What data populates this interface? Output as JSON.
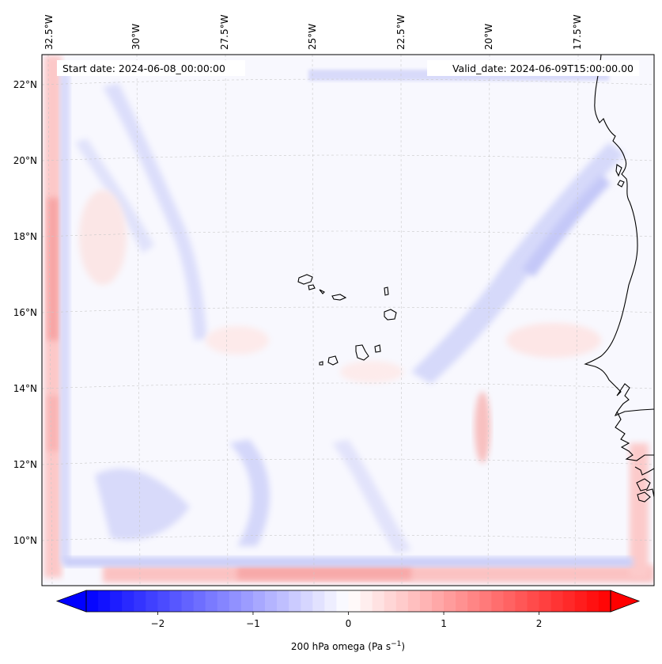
{
  "map": {
    "start_label": "Start date: 2024-06-08_00:00:00",
    "valid_label": "Valid_date: 2024-06-09T15:00:00.00",
    "lon_labels": [
      "32.5°W",
      "30°W",
      "27.5°W",
      "25°W",
      "22.5°W",
      "20°W",
      "17.5°W"
    ],
    "lat_labels": [
      "22°N",
      "20°N",
      "18°N",
      "16°N",
      "14°N",
      "12°N",
      "10°N"
    ],
    "gridlines": true,
    "land_features": [
      "Cape Verde islands",
      "West African coastline"
    ]
  },
  "colorbar": {
    "label_main": "200 hPa omega (Pa s",
    "label_sup": "−1",
    "label_close": ")",
    "ticks": [
      "−2",
      "−1",
      "0",
      "1",
      "2"
    ],
    "tick_values": [
      -2,
      -1,
      0,
      1,
      2
    ],
    "range": [
      -2.75,
      2.75
    ],
    "colormap": "bwr",
    "color_min": "#0000ff",
    "color_mid": "#ffffff",
    "color_max": "#ff0000",
    "extend": "both"
  }
}
